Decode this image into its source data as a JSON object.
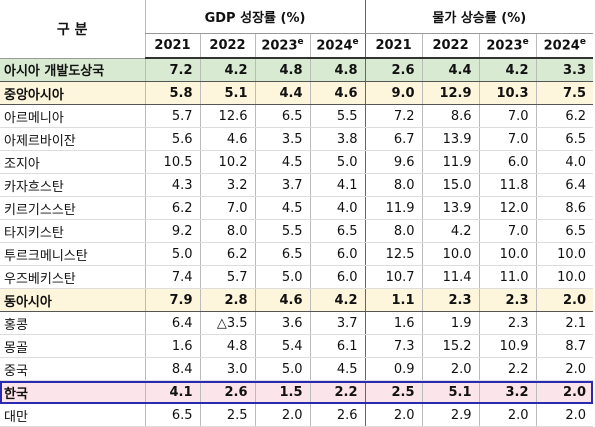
{
  "header": {
    "label": "구 분",
    "groups": [
      {
        "title": "GDP 성장률 (%)",
        "years": [
          {
            "text": "2021"
          },
          {
            "text": "2022"
          },
          {
            "text": "2023",
            "sup": "e"
          },
          {
            "text": "2024",
            "sup": "e"
          }
        ]
      },
      {
        "title": "물가 상승률 (%)",
        "years": [
          {
            "text": "2021"
          },
          {
            "text": "2022"
          },
          {
            "text": "2023",
            "sup": "e"
          },
          {
            "text": "2024",
            "sup": "e"
          }
        ]
      }
    ]
  },
  "rows": [
    {
      "name": "아시아 개발도상국",
      "values": [
        "7.2",
        "4.2",
        "4.8",
        "4.8",
        "2.6",
        "4.4",
        "4.2",
        "3.3"
      ],
      "color": "#d9ead3"
    },
    {
      "name": "중앙아시아",
      "values": [
        "5.8",
        "5.1",
        "4.4",
        "4.6",
        "9.0",
        "12.9",
        "10.3",
        "7.5"
      ],
      "color": "#fdf6dc"
    },
    {
      "name": "아르메니아",
      "values": [
        "5.7",
        "12.6",
        "6.5",
        "5.5",
        "7.2",
        "8.6",
        "7.0",
        "6.2"
      ]
    },
    {
      "name": "아제르바이잔",
      "values": [
        "5.6",
        "4.6",
        "3.5",
        "3.8",
        "6.7",
        "13.9",
        "7.0",
        "6.5"
      ]
    },
    {
      "name": "조지아",
      "values": [
        "10.5",
        "10.2",
        "4.5",
        "5.0",
        "9.6",
        "11.9",
        "6.0",
        "4.0"
      ]
    },
    {
      "name": "카자흐스탄",
      "values": [
        "4.3",
        "3.2",
        "3.7",
        "4.1",
        "8.0",
        "15.0",
        "11.8",
        "6.4"
      ]
    },
    {
      "name": "키르기스스탄",
      "values": [
        "6.2",
        "7.0",
        "4.5",
        "4.0",
        "11.9",
        "13.9",
        "12.0",
        "8.6"
      ]
    },
    {
      "name": "타지키스탄",
      "values": [
        "9.2",
        "8.0",
        "5.5",
        "6.5",
        "8.0",
        "4.2",
        "7.0",
        "6.5"
      ]
    },
    {
      "name": "투르크메니스탄",
      "values": [
        "5.0",
        "6.2",
        "6.5",
        "6.0",
        "12.5",
        "10.0",
        "10.0",
        "10.0"
      ]
    },
    {
      "name": "우즈베키스탄",
      "values": [
        "7.4",
        "5.7",
        "5.0",
        "6.0",
        "10.7",
        "11.4",
        "11.0",
        "10.0"
      ]
    },
    {
      "name": "동아시아",
      "values": [
        "7.9",
        "2.8",
        "4.6",
        "4.2",
        "1.1",
        "2.3",
        "2.3",
        "2.0"
      ],
      "color": "#fdf6dc"
    },
    {
      "name": "홍콩",
      "values": [
        "6.4",
        "△3.5",
        "3.6",
        "3.7",
        "1.6",
        "1.9",
        "2.3",
        "2.1"
      ]
    },
    {
      "name": "몽골",
      "values": [
        "1.6",
        "4.8",
        "5.4",
        "6.1",
        "7.3",
        "15.2",
        "10.9",
        "8.7"
      ]
    },
    {
      "name": "중국",
      "values": [
        "8.4",
        "3.0",
        "5.0",
        "4.5",
        "0.9",
        "2.0",
        "2.2",
        "2.0"
      ]
    },
    {
      "name": "한국",
      "values": [
        "4.1",
        "2.6",
        "1.5",
        "2.2",
        "2.5",
        "5.1",
        "3.2",
        "2.0"
      ],
      "color": "#fbe4ea",
      "border": "#2a2ab0"
    },
    {
      "name": "대만",
      "values": [
        "6.5",
        "2.5",
        "2.0",
        "2.6",
        "2.0",
        "2.9",
        "2.0",
        "2.0"
      ]
    }
  ]
}
